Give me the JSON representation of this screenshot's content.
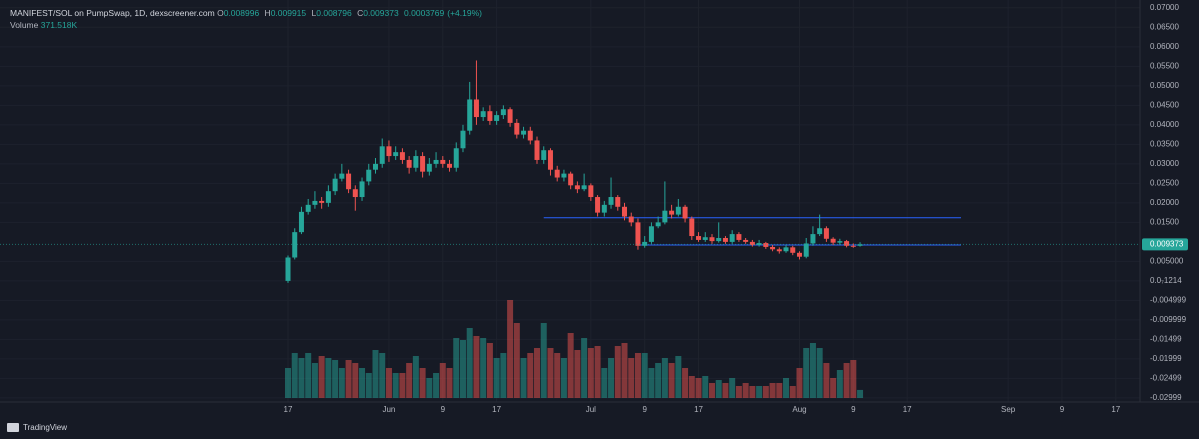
{
  "chart_data": {
    "type": "candlestick",
    "title": "MANIFEST/SOL on PumpSwap, 1D, dexscreener.com",
    "ohlc_labels": [
      "O",
      "H",
      "L",
      "C"
    ],
    "ohlc": [
      0.008996,
      0.009915,
      0.008796,
      0.009373
    ],
    "change": 0.0003769,
    "change_label": "(+4.19%)",
    "volume_label": "Volume",
    "volume_value": "371.518K",
    "up_color": "#26a69a",
    "down_color": "#ef5350",
    "line_color": "#2962ff",
    "grid": true,
    "x": [
      "05-17",
      "05-18",
      "05-19",
      "05-20",
      "05-21",
      "05-22",
      "05-23",
      "05-24",
      "05-25",
      "05-26",
      "05-27",
      "05-28",
      "05-29",
      "05-30",
      "05-31",
      "06-01",
      "06-02",
      "06-03",
      "06-04",
      "06-05",
      "06-06",
      "06-07",
      "06-08",
      "06-09",
      "06-10",
      "06-11",
      "06-12",
      "06-13",
      "06-14",
      "06-15",
      "06-16",
      "06-17",
      "06-18",
      "06-19",
      "06-20",
      "06-21",
      "06-22",
      "06-23",
      "06-24",
      "06-25",
      "06-26",
      "06-27",
      "06-28",
      "06-29",
      "06-30",
      "07-01",
      "07-02",
      "07-03",
      "07-04",
      "07-05",
      "07-06",
      "07-07",
      "07-08",
      "07-09",
      "07-10",
      "07-11",
      "07-12",
      "07-13",
      "07-14",
      "07-15",
      "07-16",
      "07-17",
      "07-18",
      "07-19",
      "07-20",
      "07-21",
      "07-22",
      "07-23",
      "07-24",
      "07-25",
      "07-26",
      "07-27",
      "07-28",
      "07-29",
      "07-30",
      "07-31",
      "08-01",
      "08-02",
      "08-03",
      "08-04",
      "08-05",
      "08-06",
      "08-07",
      "08-08",
      "08-09",
      "08-10"
    ],
    "open": [
      0,
      0.006,
      0.0125,
      0.0177,
      0.0195,
      0.0205,
      0.02,
      0.023,
      0.0262,
      0.0275,
      0.0235,
      0.0215,
      0.0255,
      0.0285,
      0.03,
      0.0345,
      0.032,
      0.033,
      0.031,
      0.029,
      0.032,
      0.028,
      0.03,
      0.031,
      0.03,
      0.029,
      0.034,
      0.0385,
      0.0465,
      0.042,
      0.0435,
      0.041,
      0.0425,
      0.044,
      0.0405,
      0.0375,
      0.0385,
      0.036,
      0.031,
      0.0335,
      0.0285,
      0.0265,
      0.0275,
      0.0245,
      0.0235,
      0.0245,
      0.0215,
      0.0175,
      0.0195,
      0.0215,
      0.019,
      0.0165,
      0.015,
      0.009,
      0.01,
      0.014,
      0.015,
      0.018,
      0.017,
      0.019,
      0.016,
      0.0115,
      0.0105,
      0.0112,
      0.0102,
      0.011,
      0.01,
      0.012,
      0.0105,
      0.01,
      0.0092,
      0.0097,
      0.0087,
      0.0081,
      0.0076,
      0.0086,
      0.0072,
      0.0062,
      0.0096,
      0.012,
      0.0135,
      0.0108,
      0.0098,
      0.0102,
      0.009,
      0.008996
    ],
    "high": [
      0.0065,
      0.0135,
      0.019,
      0.021,
      0.023,
      0.0215,
      0.0245,
      0.0275,
      0.03,
      0.0285,
      0.0245,
      0.0265,
      0.03,
      0.0315,
      0.0365,
      0.036,
      0.0345,
      0.034,
      0.032,
      0.0335,
      0.033,
      0.0315,
      0.033,
      0.032,
      0.031,
      0.0355,
      0.04,
      0.051,
      0.0565,
      0.0445,
      0.045,
      0.0435,
      0.045,
      0.0445,
      0.0415,
      0.0395,
      0.0395,
      0.037,
      0.0345,
      0.034,
      0.0295,
      0.0285,
      0.028,
      0.0255,
      0.0275,
      0.025,
      0.022,
      0.0205,
      0.0265,
      0.022,
      0.02,
      0.0175,
      0.016,
      0.0115,
      0.015,
      0.0165,
      0.0255,
      0.0195,
      0.021,
      0.0195,
      0.0165,
      0.0125,
      0.0125,
      0.012,
      0.015,
      0.0115,
      0.013,
      0.0125,
      0.011,
      0.0105,
      0.0105,
      0.01,
      0.0092,
      0.0086,
      0.0092,
      0.009,
      0.0076,
      0.011,
      0.014,
      0.017,
      0.014,
      0.0112,
      0.0108,
      0.0105,
      0.0096,
      0.009915
    ],
    "low": [
      -0.0005,
      0.0055,
      0.012,
      0.017,
      0.0185,
      0.0185,
      0.019,
      0.022,
      0.0255,
      0.0225,
      0.018,
      0.0205,
      0.0245,
      0.0275,
      0.029,
      0.0305,
      0.031,
      0.03,
      0.0275,
      0.028,
      0.0265,
      0.027,
      0.029,
      0.029,
      0.028,
      0.028,
      0.033,
      0.0375,
      0.04,
      0.041,
      0.04,
      0.04,
      0.0415,
      0.0395,
      0.0365,
      0.0365,
      0.035,
      0.03,
      0.03,
      0.027,
      0.0255,
      0.0255,
      0.0235,
      0.0225,
      0.023,
      0.0205,
      0.0165,
      0.0165,
      0.0185,
      0.018,
      0.0155,
      0.014,
      0.008,
      0.0085,
      0.0095,
      0.0135,
      0.0145,
      0.016,
      0.0165,
      0.015,
      0.0105,
      0.01,
      0.01,
      0.0095,
      0.0098,
      0.0095,
      0.0095,
      0.01,
      0.0095,
      0.0088,
      0.0088,
      0.0082,
      0.0076,
      0.007,
      0.0072,
      0.0066,
      0.0055,
      0.0058,
      0.009,
      0.0115,
      0.01,
      0.0092,
      0.0092,
      0.0086,
      0.0085,
      0.008796
    ],
    "close": [
      0.006,
      0.0125,
      0.0177,
      0.0195,
      0.0205,
      0.02,
      0.023,
      0.0262,
      0.0275,
      0.0235,
      0.0215,
      0.0255,
      0.0285,
      0.03,
      0.0345,
      0.032,
      0.033,
      0.031,
      0.029,
      0.032,
      0.028,
      0.03,
      0.031,
      0.03,
      0.029,
      0.034,
      0.0385,
      0.0465,
      0.042,
      0.0435,
      0.041,
      0.0425,
      0.044,
      0.0405,
      0.0375,
      0.0385,
      0.036,
      0.031,
      0.0335,
      0.0285,
      0.0265,
      0.0275,
      0.0245,
      0.0235,
      0.0245,
      0.0215,
      0.0175,
      0.0195,
      0.0215,
      0.019,
      0.0165,
      0.015,
      0.009,
      0.01,
      0.014,
      0.015,
      0.018,
      0.017,
      0.019,
      0.016,
      0.0115,
      0.0105,
      0.0112,
      0.0102,
      0.011,
      0.01,
      0.012,
      0.0105,
      0.01,
      0.0092,
      0.0097,
      0.0087,
      0.0081,
      0.0076,
      0.0086,
      0.0072,
      0.0062,
      0.0096,
      0.012,
      0.0135,
      0.0108,
      0.0098,
      0.0102,
      0.009,
      0.008996,
      0.009373
    ],
    "volume": [
      1380000,
      2070000,
      1840000,
      2070000,
      1610000,
      1932000,
      1840000,
      1748000,
      1380000,
      1748000,
      1610000,
      1380000,
      1150000,
      2208000,
      2070000,
      1380000,
      1150000,
      1150000,
      1610000,
      1932000,
      1380000,
      920000,
      1150000,
      1610000,
      1380000,
      2760000,
      2668000,
      3220000,
      2852000,
      2760000,
      2530000,
      1840000,
      2070000,
      4508000,
      3450000,
      1840000,
      2070000,
      2300000,
      3450000,
      2300000,
      2070000,
      1840000,
      2990000,
      2208000,
      2760000,
      2300000,
      2392000,
      1380000,
      1840000,
      2392000,
      2530000,
      1840000,
      2070000,
      2070000,
      1380000,
      1610000,
      1840000,
      1610000,
      1932000,
      1380000,
      1012000,
      920000,
      1012000,
      690000,
      828000,
      690000,
      920000,
      552000,
      690000,
      552000,
      552000,
      552000,
      690000,
      690000,
      920000,
      552000,
      1380000,
      2300000,
      2530000,
      2300000,
      1610000,
      920000,
      1288000,
      1610000,
      1748000,
      371518
    ],
    "hlines": [
      {
        "value": 0.0162,
        "from": "06-24",
        "to": "08-25"
      },
      {
        "value": 0.0092,
        "from": "07-08",
        "to": "08-25"
      }
    ],
    "ylim": [
      -0.0336,
      0.072
    ],
    "yticks": [
      {
        "value": 0.07,
        "label": "0.07000"
      },
      {
        "value": 0.065,
        "label": "0.06500"
      },
      {
        "value": 0.06,
        "label": "0.06000"
      },
      {
        "value": 0.055,
        "label": "0.05500"
      },
      {
        "value": 0.05,
        "label": "0.05000"
      },
      {
        "value": 0.045,
        "label": "0.04500"
      },
      {
        "value": 0.04,
        "label": "0.04000"
      },
      {
        "value": 0.035,
        "label": "0.03500"
      },
      {
        "value": 0.03,
        "label": "0.03000"
      },
      {
        "value": 0.025,
        "label": "0.02500"
      },
      {
        "value": 0.02,
        "label": "0.02000"
      },
      {
        "value": 0.015,
        "label": "0.01500"
      },
      {
        "value": 0.005,
        "label": "0.005000"
      },
      {
        "value": 1.214e-08,
        "label": "0.0₇1214"
      },
      -0.004999,
      -0.009999,
      -0.01499,
      -0.01999,
      -0.02499,
      -0.02999
    ],
    "xticks": [
      {
        "value": "05-17",
        "label": "17"
      },
      {
        "value": "06-01",
        "label": "Jun"
      },
      {
        "value": "06-09",
        "label": "9"
      },
      {
        "value": "06-17",
        "label": "17"
      },
      {
        "value": "07-01",
        "label": "Jul"
      },
      {
        "value": "07-09",
        "label": "9"
      },
      {
        "value": "07-17",
        "label": "17"
      },
      {
        "value": "08-01",
        "label": "Aug"
      },
      {
        "value": "08-09",
        "label": "9"
      },
      {
        "value": "08-17",
        "label": "17"
      },
      {
        "value": "09-01",
        "label": "Sep"
      },
      {
        "value": "09-09",
        "label": "9"
      },
      {
        "value": "09-17",
        "label": "17"
      }
    ]
  },
  "footer": {
    "brand": "TradingView"
  }
}
